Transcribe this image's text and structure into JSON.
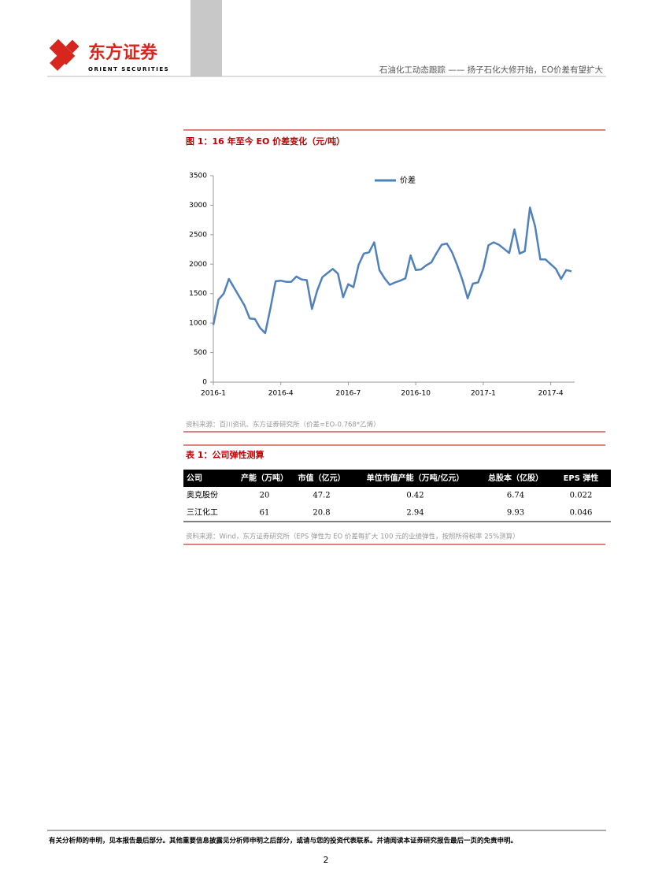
{
  "header": {
    "logo_cn": "东方证券",
    "logo_en": "ORIENT SECURITIES",
    "report_title": "石油化工动态跟踪 —— 扬子石化大修开始，EO价差有望扩大"
  },
  "figure": {
    "caption": "图 1：16 年至今 EO 价差变化（元/吨）",
    "source": "资料来源：百川资讯、东方证券研究所（价差=EO-0.768*乙烯）"
  },
  "chart_data": {
    "type": "line",
    "categories": [
      "2016-1",
      null,
      null,
      null,
      null,
      null,
      null,
      null,
      null,
      null,
      null,
      null,
      null,
      "2016-4",
      null,
      null,
      null,
      null,
      null,
      null,
      null,
      null,
      null,
      null,
      null,
      null,
      "2016-7",
      null,
      null,
      null,
      null,
      null,
      null,
      null,
      null,
      null,
      null,
      null,
      null,
      "2016-10",
      null,
      null,
      null,
      null,
      null,
      null,
      null,
      null,
      null,
      null,
      null,
      null,
      "2017-1",
      null,
      null,
      null,
      null,
      null,
      null,
      null,
      null,
      null,
      null,
      null,
      null,
      "2017-4",
      null,
      null,
      null,
      null
    ],
    "series": [
      {
        "name": "价差",
        "color": "#4f81bd",
        "values": [
          970,
          1400,
          1500,
          1750,
          1600,
          1450,
          1300,
          1080,
          1070,
          920,
          830,
          1250,
          1710,
          1720,
          1700,
          1700,
          1790,
          1740,
          1730,
          1240,
          1550,
          1780,
          1850,
          1920,
          1840,
          1440,
          1660,
          1610,
          1990,
          2180,
          2200,
          2370,
          1900,
          1760,
          1650,
          1690,
          1720,
          1760,
          2150,
          1900,
          1910,
          1980,
          2030,
          2190,
          2330,
          2350,
          2200,
          1980,
          1730,
          1420,
          1670,
          1690,
          1920,
          2320,
          2370,
          2330,
          2260,
          2190,
          2590,
          2180,
          2220,
          2960,
          2640,
          2080,
          2080,
          2000,
          1920,
          1750,
          1900,
          1880
        ]
      }
    ],
    "ylim": [
      0,
      3500
    ],
    "yticks": [
      0,
      500,
      1000,
      1500,
      2000,
      2500,
      3000,
      3500
    ],
    "grid": false,
    "legend": "top"
  },
  "table": {
    "caption": "表 1：公司弹性测算",
    "columns": [
      "公司",
      "产能（万吨）",
      "市值（亿元）",
      "单位市值产能（万吨/亿元）",
      "总股本（亿股）",
      "EPS 弹性"
    ],
    "rows": [
      [
        "奥克股份",
        20,
        47.2,
        0.42,
        6.74,
        0.022
      ],
      [
        "三江化工",
        61,
        20.8,
        2.94,
        9.93,
        0.046
      ]
    ],
    "source": "资料来源：Wind，东方证券研究所（EPS 弹性为 EO 价差每扩大 100 元的业绩弹性，按照所得税率 25%测算）"
  },
  "footer": {
    "disclaimer": "有关分析师的申明，见本报告最后部分。其他重要信息披露见分析师申明之后部分，或请与您的投资代表联系。并请阅读本证券研究报告最后一页的免责申明。",
    "page": 2
  }
}
